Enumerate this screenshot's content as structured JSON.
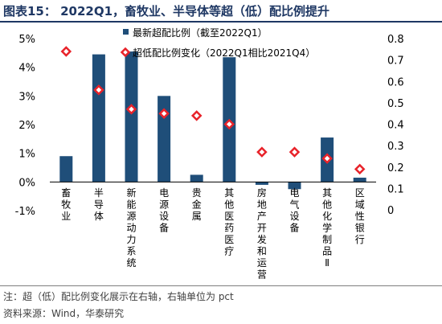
{
  "title": "图表15： 2022Q1，畜牧业、半导体等超（低）配比例提升",
  "notes": {
    "note": "注：超（低）配比例变化展示在右轴，右轴单位为 pct",
    "source": "资料来源：Wind，华泰研究"
  },
  "colors": {
    "bar": "#1f4e79",
    "marker": "#e8232a",
    "title": "#1f3864"
  },
  "chart_data": {
    "type": "bar",
    "categories": [
      "畜牧业",
      "半导体",
      "新能源动力系统",
      "电源设备",
      "贵金属",
      "其他医药医疗",
      "房地产开发和运营",
      "电气设备",
      "其他化学制品Ⅱ",
      "区域性银行"
    ],
    "series": [
      {
        "name": "最新超配比例（截至2022Q1）",
        "axis": "left",
        "type": "bar",
        "values": [
          0.9,
          4.45,
          4.55,
          3.0,
          0.25,
          4.35,
          -0.1,
          -0.25,
          1.55,
          0.15
        ]
      },
      {
        "name": "超低配比例变化（2022Q1相比2021Q4）",
        "axis": "right",
        "type": "scatter",
        "marker": "diamond",
        "values": [
          0.74,
          0.56,
          0.47,
          0.45,
          0.44,
          0.4,
          0.27,
          0.27,
          0.24,
          0.19
        ]
      }
    ],
    "y_left": {
      "min": -1,
      "max": 5,
      "ticks": [
        "-1%",
        "0%",
        "1%",
        "2%",
        "3%",
        "4%",
        "5%"
      ]
    },
    "y_right": {
      "min": 0,
      "max": 0.8,
      "ticks": [
        "0",
        "0.1",
        "0.2",
        "0.3",
        "0.4",
        "0.5",
        "0.6",
        "0.7",
        "0.8"
      ]
    },
    "legend_position": "top-center",
    "grid": false
  }
}
